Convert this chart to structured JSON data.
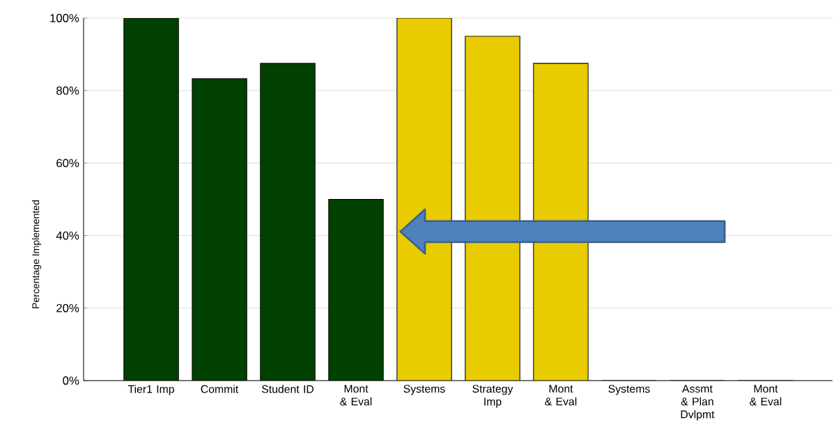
{
  "chart_data": {
    "type": "bar",
    "ylabel": "Percentage Implemented",
    "categories": [
      "Tier1 Imp",
      "Commit",
      "Student ID",
      "Mont & Eval",
      "Systems",
      "Strategy Imp",
      "Mont & Eval",
      "Systems",
      "Assmt & Plan Dvlpmt",
      "Mont & Eval"
    ],
    "values": [
      100,
      83.3,
      87.5,
      50,
      100,
      95,
      87.5,
      0,
      0,
      0
    ],
    "colors": [
      "#004000",
      "#004000",
      "#004000",
      "#004000",
      "#e8cc00",
      "#e8cc00",
      "#e8cc00",
      "#e8cc00",
      "#e8cc00",
      "#e8cc00"
    ],
    "ylim": [
      0,
      100
    ],
    "yticks": [
      {
        "value": 0,
        "label": "0%"
      },
      {
        "value": 20,
        "label": "20%"
      },
      {
        "value": 40,
        "label": "40%"
      },
      {
        "value": 60,
        "label": "60%"
      },
      {
        "value": 80,
        "label": "80%"
      },
      {
        "value": 100,
        "label": "100%"
      }
    ],
    "grid": "y"
  }
}
